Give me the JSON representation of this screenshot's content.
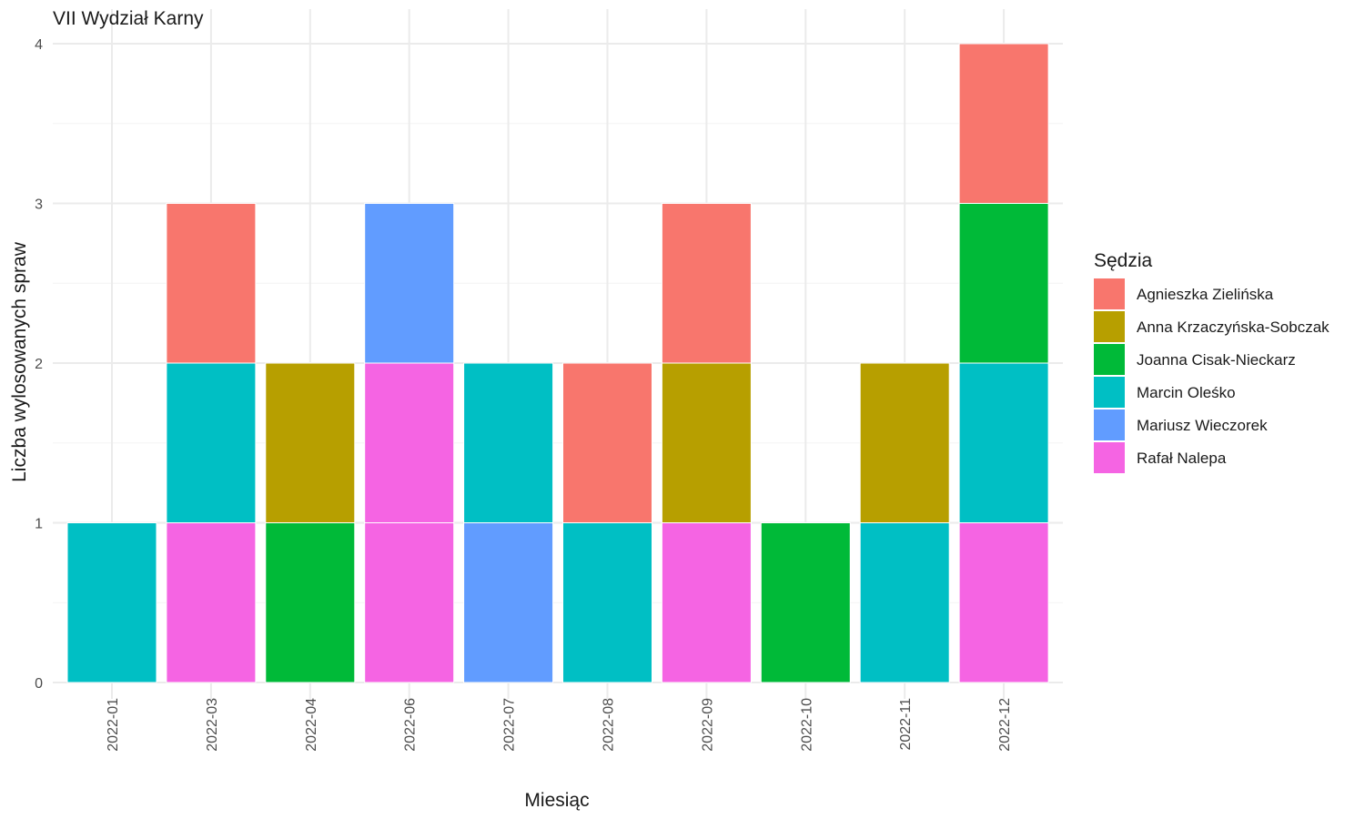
{
  "chart_data": {
    "type": "bar",
    "stacked": true,
    "title": "VII Wydział Karny",
    "xlabel": "Miesiąc",
    "ylabel": "Liczba wylosowanych spraw",
    "ylim": [
      0,
      4
    ],
    "yticks": [
      "0",
      "1",
      "2",
      "3",
      "4"
    ],
    "grid": true,
    "legend_title": "Sędzia",
    "legend_position": "right",
    "categories": [
      "2022-01",
      "2022-03",
      "2022-04",
      "2022-06",
      "2022-07",
      "2022-08",
      "2022-09",
      "2022-10",
      "2022-11",
      "2022-12"
    ],
    "series": [
      {
        "name": "Agnieszka Zielińska",
        "color": "#F8766D",
        "values": [
          0,
          1,
          0,
          0,
          0,
          1,
          1,
          0,
          0,
          1
        ]
      },
      {
        "name": "Anna Krzaczyńska-Sobczak",
        "color": "#B79F00",
        "values": [
          0,
          0,
          1,
          0,
          0,
          0,
          1,
          0,
          1,
          0
        ]
      },
      {
        "name": "Joanna Cisak-Nieckarz",
        "color": "#00BA38",
        "values": [
          0,
          0,
          1,
          0,
          0,
          0,
          0,
          1,
          0,
          1
        ]
      },
      {
        "name": "Marcin Oleśko",
        "color": "#00BFC4",
        "values": [
          1,
          1,
          0,
          0,
          1,
          1,
          0,
          0,
          1,
          1
        ]
      },
      {
        "name": "Mariusz Wieczorek",
        "color": "#619CFF",
        "values": [
          0,
          0,
          0,
          1,
          1,
          0,
          0,
          0,
          0,
          0
        ]
      },
      {
        "name": "Rafał Nalepa",
        "color": "#F564E3",
        "values": [
          0,
          1,
          0,
          2,
          0,
          0,
          1,
          0,
          0,
          1
        ]
      }
    ]
  }
}
